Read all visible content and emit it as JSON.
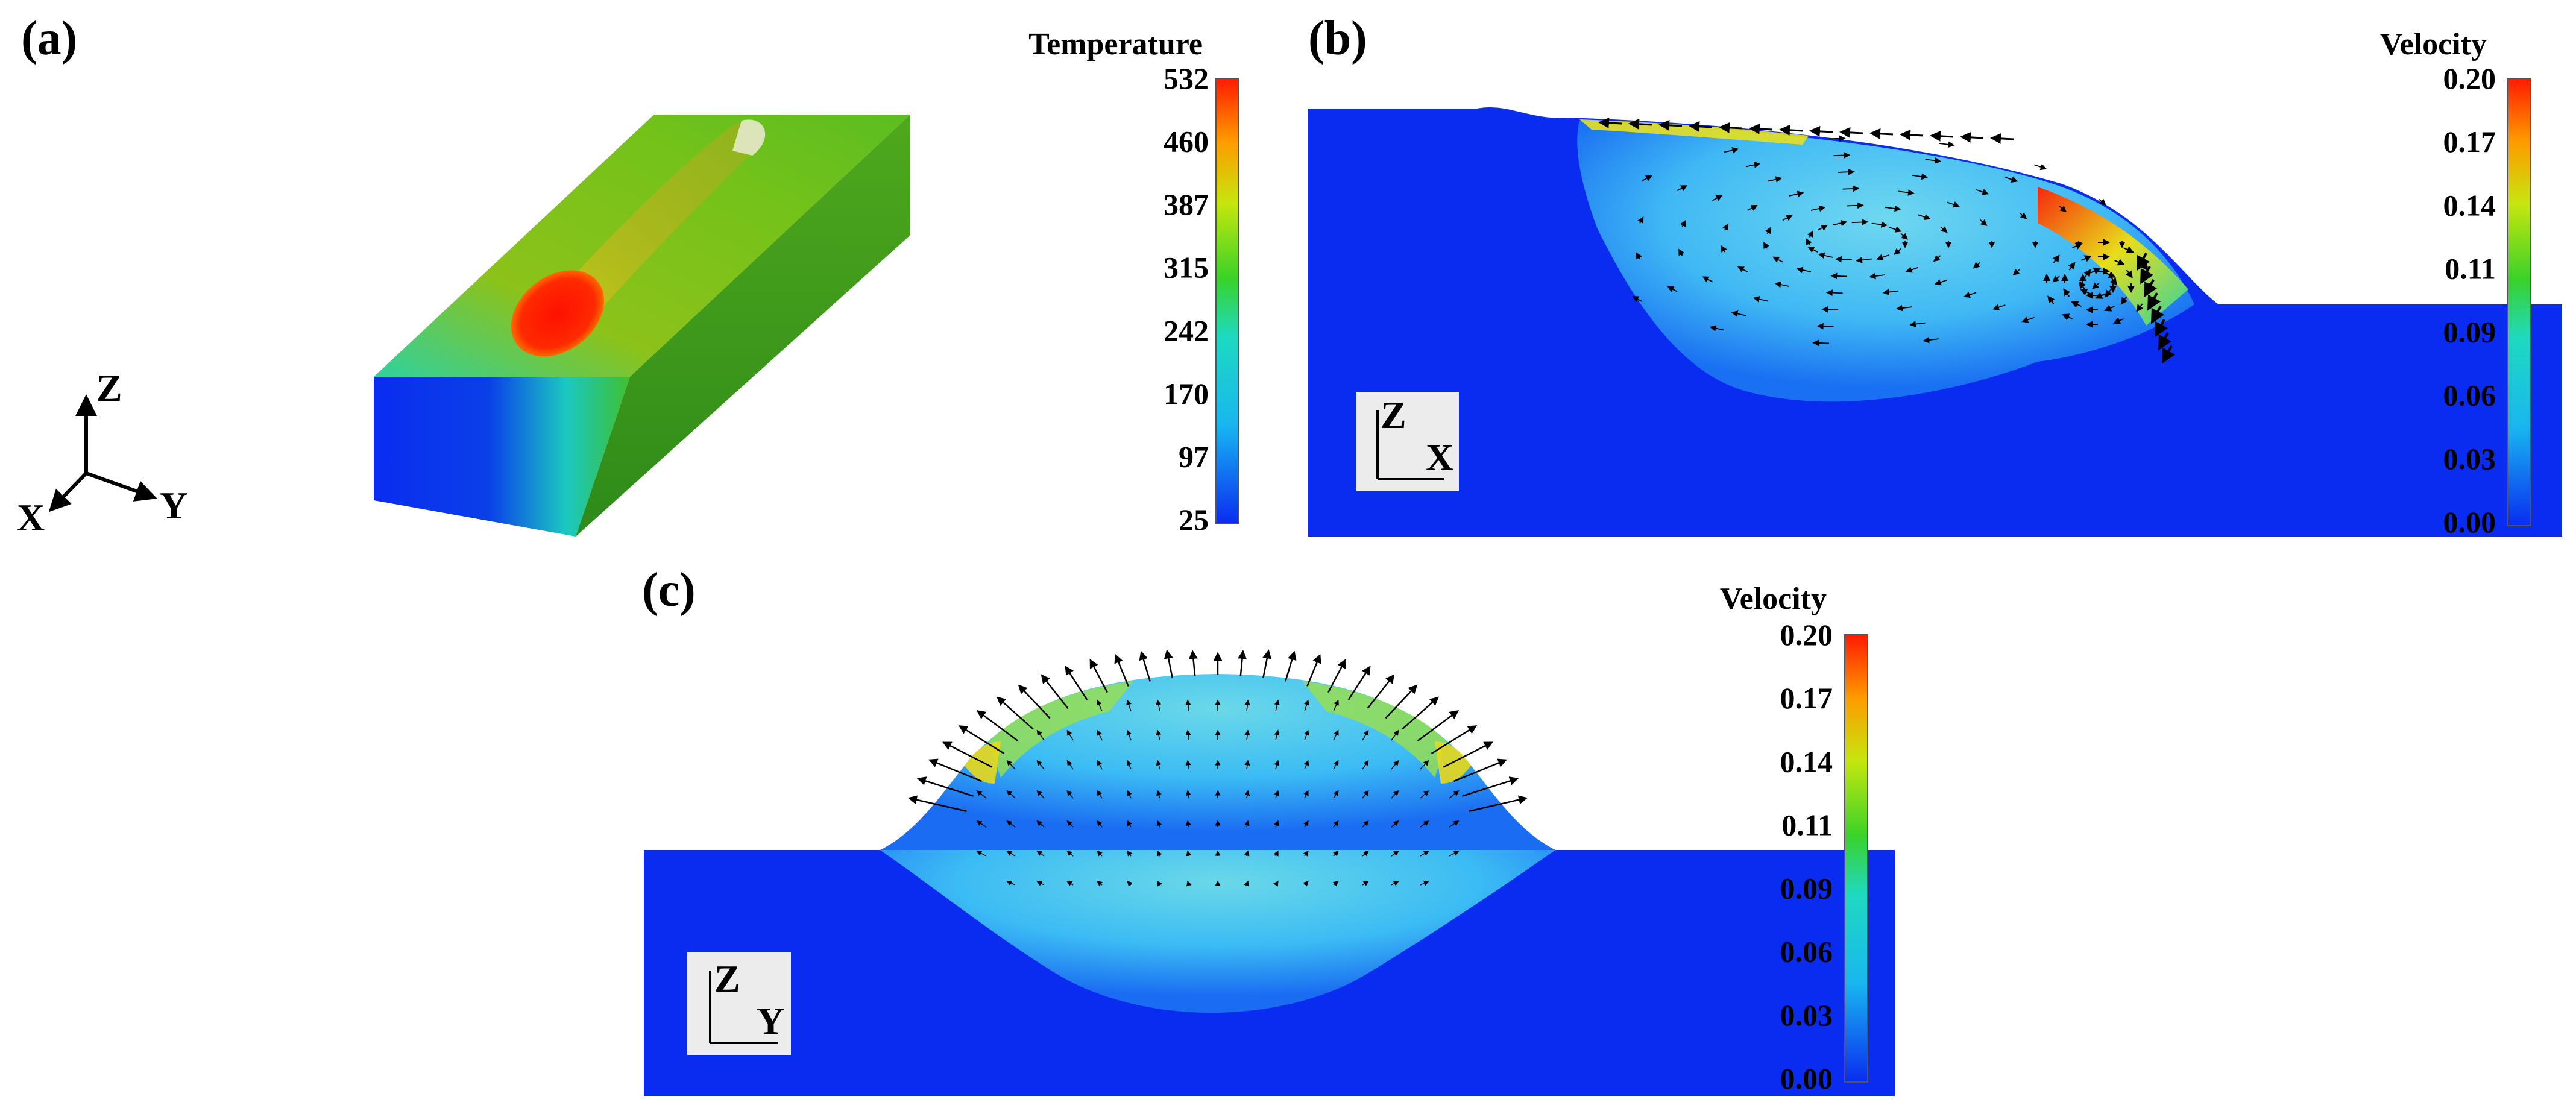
{
  "panels": {
    "a": {
      "label": "(a)",
      "colorbar": {
        "title": "Temperature",
        "ticks": [
          "532",
          "460",
          "387",
          "315",
          "242",
          "170",
          "97",
          "25"
        ]
      },
      "triad": {
        "z": "Z",
        "x": "X",
        "y": "Y"
      }
    },
    "b": {
      "label": "(b)",
      "colorbar": {
        "title": "Velocity",
        "ticks": [
          "0.20",
          "0.17",
          "0.14",
          "0.11",
          "0.09",
          "0.06",
          "0.03",
          "0.00"
        ]
      },
      "axes_box": {
        "vertical": "Z",
        "horizontal": "X"
      }
    },
    "c": {
      "label": "(c)",
      "colorbar": {
        "title": "Velocity",
        "ticks": [
          "0.20",
          "0.17",
          "0.14",
          "0.11",
          "0.09",
          "0.06",
          "0.03",
          "0.00"
        ]
      },
      "axes_box": {
        "vertical": "Z",
        "horizontal": "Y"
      }
    }
  },
  "colors": {
    "substrate_blue": "#0a2cf0",
    "colormap": [
      "#0a2cf0",
      "#19b6f0",
      "#1fd9c0",
      "#3ad22a",
      "#c6e60e",
      "#ff9a00",
      "#ff1a00"
    ]
  }
}
